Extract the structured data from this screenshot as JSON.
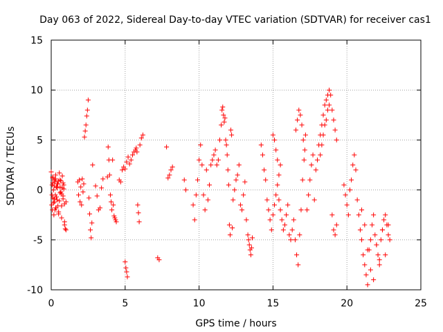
{
  "chart_data": {
    "type": "scatter",
    "title": "Day 063 of 2022, Sidereal Day-to-day VTEC variation (SDTVAR) for receiver cas1",
    "xlabel": "GPS time / hours",
    "ylabel": "SDTVAR / TECUs",
    "xlim": [
      0,
      25
    ],
    "ylim": [
      -10,
      15
    ],
    "xticks": [
      "0",
      "5",
      "10",
      "15",
      "20",
      "25"
    ],
    "yticks": [
      "-10",
      "-5",
      "0",
      "5",
      "10",
      "15"
    ],
    "grid": true,
    "marker": "+",
    "series_color": "#ff0000",
    "series": [
      {
        "name": "SDTVAR",
        "x": [
          0.0,
          0.03,
          0.06,
          0.08,
          0.1,
          0.12,
          0.15,
          0.18,
          0.2,
          0.22,
          0.25,
          0.28,
          0.3,
          0.33,
          0.36,
          0.4,
          0.45,
          0.5,
          0.55,
          0.6,
          0.65,
          0.7,
          0.75,
          0.8,
          0.85,
          0.9,
          0.95,
          1.0,
          0.05,
          0.1,
          0.15,
          0.2,
          0.25,
          0.3,
          0.35,
          0.4,
          0.45,
          0.5,
          0.55,
          0.6,
          0.65,
          0.7,
          0.75,
          0.8,
          0.85,
          0.9,
          0.1,
          0.2,
          0.3,
          0.4,
          0.5,
          0.6,
          0.7,
          0.8,
          0.9,
          1.0,
          1.8,
          1.85,
          1.9,
          1.95,
          2.0,
          2.05,
          2.1,
          2.15,
          2.2,
          2.25,
          2.3,
          2.35,
          2.4,
          2.45,
          2.5,
          2.55,
          2.6,
          2.65,
          2.7,
          2.75,
          2.8,
          3.0,
          3.1,
          3.2,
          3.3,
          3.4,
          3.5,
          3.8,
          3.85,
          3.9,
          3.95,
          4.0,
          4.05,
          4.1,
          4.15,
          4.2,
          4.25,
          4.3,
          4.35,
          4.4,
          4.6,
          4.7,
          4.8,
          4.9,
          5.0,
          5.1,
          5.2,
          5.3,
          5.4,
          5.5,
          5.6,
          5.0,
          5.05,
          5.1,
          5.15,
          5.7,
          5.75,
          5.8,
          5.85,
          5.9,
          5.95,
          6.0,
          6.1,
          6.2,
          7.2,
          7.3,
          7.8,
          7.9,
          8.0,
          8.1,
          8.2,
          9.0,
          9.1,
          9.6,
          9.7,
          9.8,
          9.9,
          10.0,
          10.1,
          10.2,
          10.3,
          10.4,
          10.5,
          10.6,
          10.7,
          10.8,
          10.9,
          11.0,
          11.1,
          11.2,
          11.3,
          11.4,
          11.5,
          11.55,
          11.6,
          11.65,
          11.7,
          11.75,
          11.8,
          11.85,
          11.9,
          11.95,
          12.0,
          12.05,
          12.1,
          12.15,
          12.2,
          12.25,
          12.3,
          12.4,
          12.5,
          12.6,
          12.7,
          12.8,
          12.9,
          13.0,
          13.1,
          13.2,
          13.3,
          13.35,
          13.4,
          13.45,
          13.5,
          13.55,
          13.6,
          14.2,
          14.3,
          14.4,
          14.5,
          14.6,
          14.7,
          14.8,
          14.9,
          15.0,
          15.1,
          15.2,
          15.3,
          15.4,
          15.5,
          15.0,
          15.1,
          15.2,
          15.3,
          15.4,
          15.5,
          15.6,
          15.7,
          15.8,
          15.9,
          16.0,
          16.1,
          16.2,
          16.3,
          16.4,
          16.5,
          16.6,
          16.7,
          16.8,
          16.9,
          17.0,
          17.1,
          17.2,
          16.55,
          16.65,
          16.75,
          16.85,
          16.95,
          17.05,
          17.15,
          17.3,
          17.4,
          17.5,
          17.6,
          17.7,
          17.8,
          17.9,
          18.0,
          18.1,
          18.2,
          18.3,
          18.4,
          18.5,
          18.6,
          18.7,
          18.8,
          18.9,
          19.0,
          19.1,
          19.2,
          19.3,
          18.2,
          18.3,
          18.4,
          18.5,
          18.6,
          18.7,
          18.8,
          19.0,
          19.1,
          19.2,
          19.3,
          19.8,
          19.9,
          20.0,
          20.1,
          20.2,
          20.3,
          20.4,
          20.5,
          20.6,
          20.7,
          20.8,
          20.9,
          21.0,
          21.1,
          21.2,
          21.3,
          21.4,
          21.5,
          21.6,
          21.7,
          21.8,
          21.9,
          22.0,
          22.1,
          22.2,
          22.3,
          22.4,
          22.5,
          22.6,
          22.7,
          22.8,
          22.9,
          21.0,
          21.2,
          21.4,
          21.6,
          21.8,
          22.0,
          22.2,
          22.4,
          22.6,
          22.8
        ],
        "y": [
          1.8,
          -1.5,
          0.5,
          -2.0,
          1.2,
          -0.8,
          0.0,
          -2.5,
          1.0,
          -1.2,
          0.8,
          -0.5,
          1.5,
          -1.8,
          0.3,
          -1.0,
          0.6,
          -2.2,
          1.7,
          -0.3,
          0.9,
          -1.6,
          0.2,
          -0.9,
          0.5,
          -3.5,
          -3.9,
          -1.2,
          -0.5,
          0.7,
          -1.3,
          0.4,
          -2.0,
          1.1,
          -0.7,
          0.2,
          -1.6,
          0.9,
          -1.1,
          0.3,
          -0.2,
          -2.8,
          1.4,
          -0.6,
          0.1,
          -1.4,
          1.3,
          -0.9,
          -1.8,
          0.6,
          -2.4,
          1.0,
          -0.4,
          0.7,
          -3.2,
          -4.0,
          0.8,
          -0.5,
          1.0,
          -1.2,
          0.3,
          -1.5,
          1.1,
          -0.2,
          0.6,
          5.3,
          5.9,
          6.5,
          7.4,
          8.0,
          9.0,
          -0.8,
          -2.4,
          -4.0,
          -4.8,
          -3.3,
          2.5,
          0.4,
          -0.6,
          -2.0,
          -1.8,
          0.2,
          1.1,
          1.3,
          4.3,
          3.0,
          1.5,
          -0.5,
          -1.2,
          -2.0,
          3.0,
          -1.5,
          -2.6,
          -2.8,
          -3.0,
          -3.2,
          1.0,
          0.8,
          2.0,
          2.3,
          2.1,
          2.8,
          3.3,
          2.6,
          3.0,
          3.5,
          3.8,
          -7.2,
          -7.8,
          -8.2,
          -8.7,
          4.0,
          4.2,
          3.8,
          -1.5,
          -2.3,
          -3.2,
          4.5,
          5.2,
          5.5,
          -6.8,
          -7.0,
          4.3,
          1.2,
          1.5,
          2.0,
          2.3,
          1.0,
          0.0,
          -1.5,
          -3.0,
          -0.5,
          1.0,
          3.0,
          4.5,
          2.5,
          -0.5,
          -2.0,
          2.0,
          -1.0,
          0.5,
          2.5,
          3.0,
          3.5,
          4.0,
          2.5,
          3.0,
          5.0,
          6.5,
          8.0,
          8.3,
          7.5,
          6.8,
          7.2,
          5.0,
          4.5,
          3.5,
          2.0,
          0.5,
          -3.5,
          -4.5,
          6.0,
          5.5,
          -3.8,
          -1.0,
          0.0,
          1.0,
          1.5,
          2.5,
          -1.5,
          -2.0,
          -0.5,
          0.8,
          -3.0,
          -4.5,
          -5.0,
          -5.5,
          -6.0,
          -6.5,
          -5.8,
          -4.8,
          4.5,
          3.5,
          2.0,
          1.0,
          -1.0,
          -2.0,
          -3.0,
          -4.0,
          -2.5,
          -1.5,
          -0.5,
          0.5,
          1.5,
          2.5,
          5.5,
          5.0,
          4.0,
          3.0,
          -1.0,
          -2.0,
          -3.0,
          -4.0,
          -3.5,
          -2.5,
          -1.5,
          -4.5,
          -5.0,
          -4.0,
          -3.0,
          -5.0,
          -6.5,
          -7.5,
          -4.5,
          -2.0,
          1.0,
          3.0,
          5.5,
          6.0,
          7.0,
          8.0,
          7.5,
          6.5,
          5.0,
          4.0,
          -2.0,
          -0.5,
          1.0,
          2.5,
          3.5,
          -1.0,
          2.0,
          3.0,
          4.5,
          5.5,
          6.5,
          7.5,
          8.5,
          9.0,
          9.5,
          10.0,
          9.5,
          8.0,
          7.0,
          6.0,
          5.0,
          3.5,
          4.5,
          5.5,
          6.5,
          7.0,
          8.0,
          8.5,
          -2.5,
          -4.0,
          -4.5,
          -3.5,
          0.5,
          -0.5,
          -1.5,
          -2.5,
          0.0,
          1.0,
          2.5,
          3.5,
          2.0,
          -1.0,
          -2.5,
          -4.0,
          -5.0,
          -6.5,
          -7.5,
          -8.5,
          -9.5,
          -6.0,
          -5.0,
          -3.5,
          -2.5,
          -4.5,
          -5.5,
          -6.5,
          -7.5,
          -5.0,
          -4.0,
          -3.0,
          -2.5,
          -3.5,
          -4.5,
          -5.0,
          -2.0,
          -3.5,
          -6.0,
          -8.0,
          -9.0,
          -5.5,
          -7.0,
          -4.0,
          -6.5,
          -3.5
        ]
      }
    ]
  }
}
